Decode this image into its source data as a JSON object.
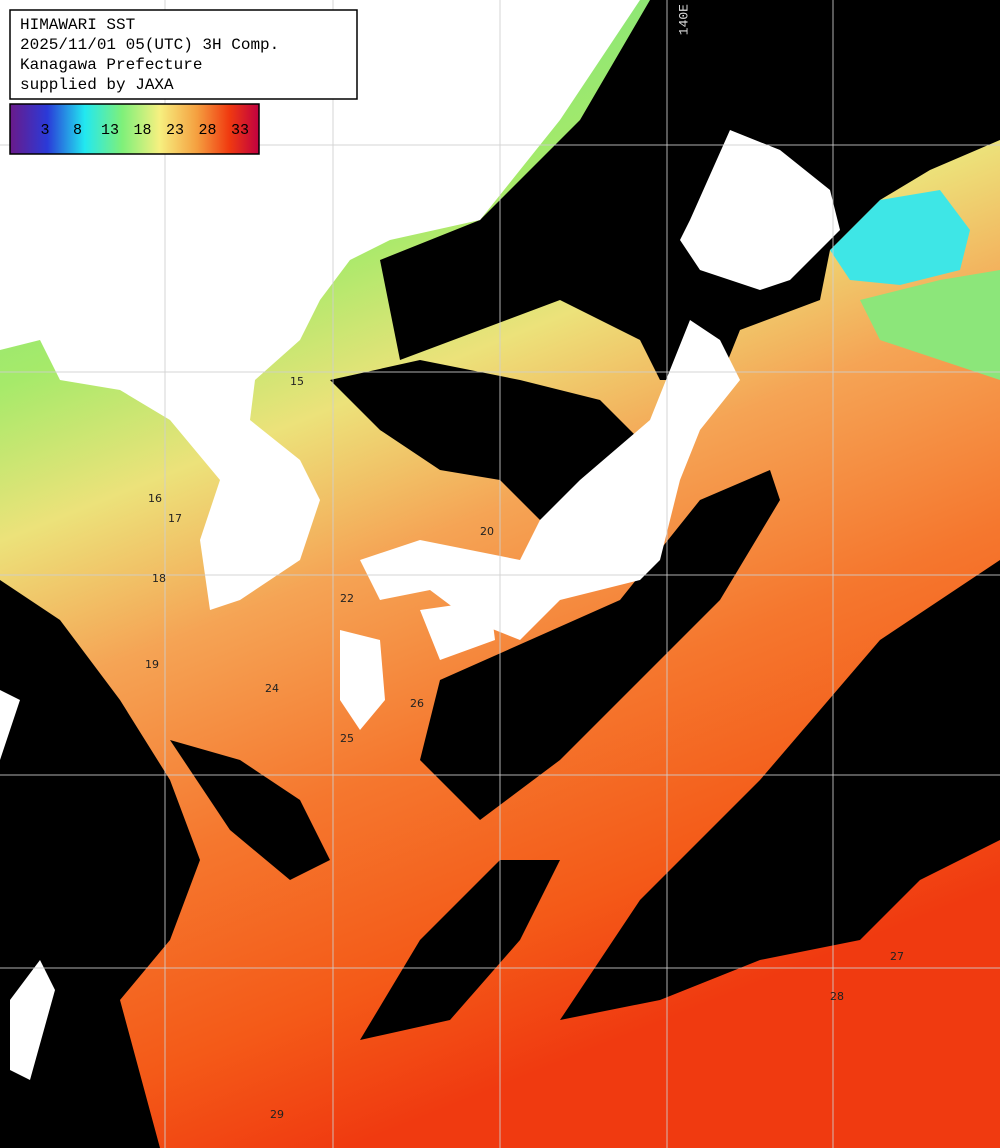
{
  "header": {
    "lines": [
      "HIMAWARI SST",
      "2025/11/01 05(UTC) 3H Comp.",
      "Kanagawa Prefecture",
      "supplied by JAXA"
    ]
  },
  "colorbar": {
    "ticks": [
      3,
      8,
      13,
      18,
      23,
      28,
      33
    ]
  },
  "grid_label": "140E",
  "contour_labels": [
    15,
    16,
    17,
    18,
    19,
    20,
    22,
    24,
    25,
    26,
    27,
    28,
    29
  ]
}
